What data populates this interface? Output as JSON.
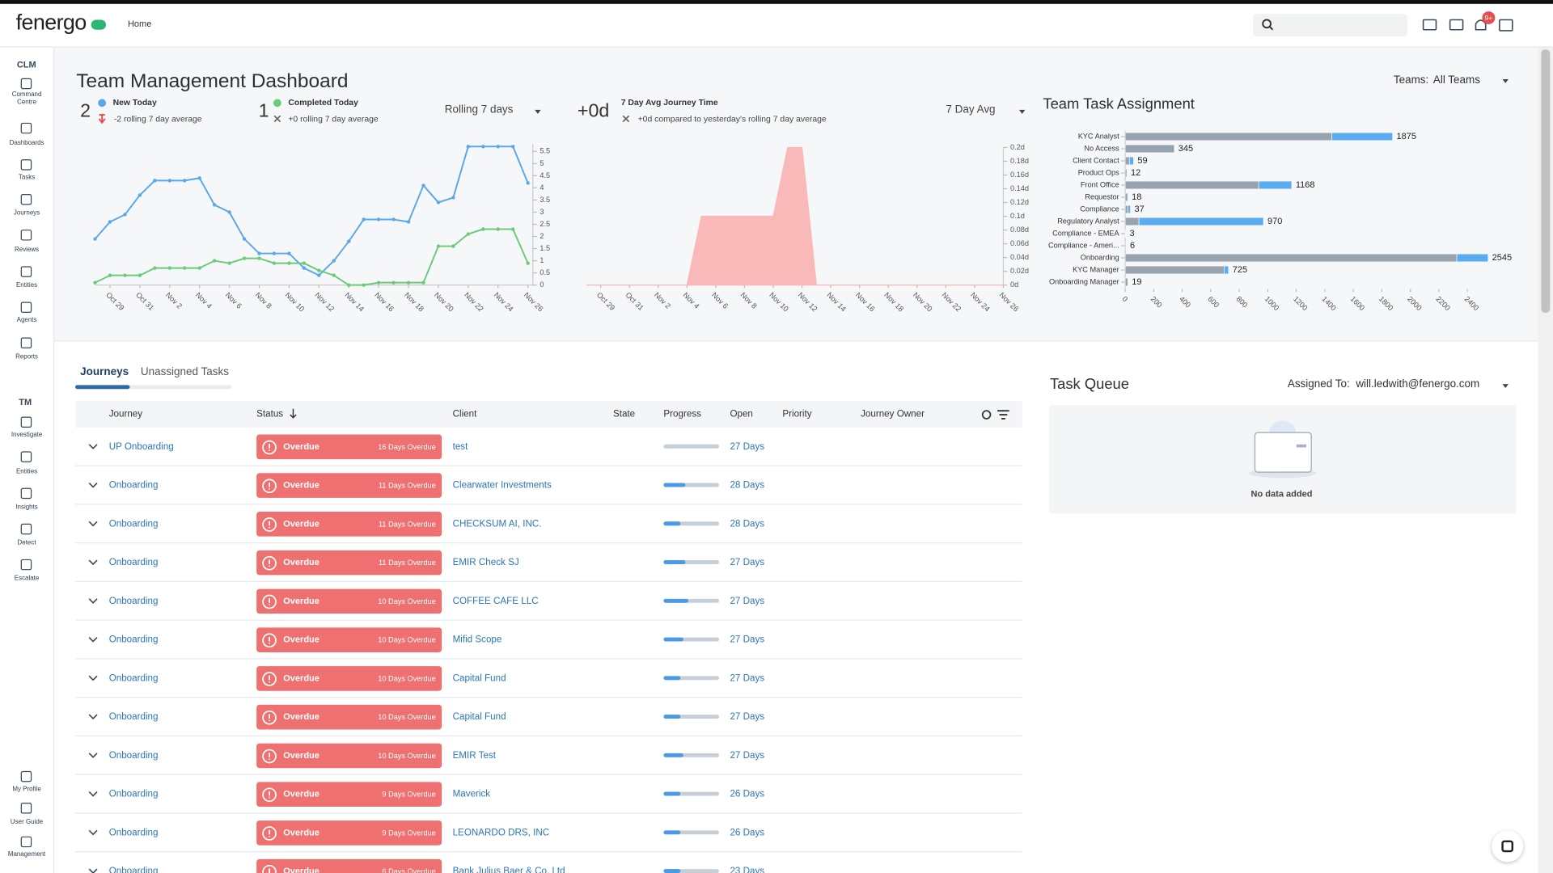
{
  "header": {
    "logo": "fenergo",
    "nav": "Home",
    "badge": "9+"
  },
  "sidebar": {
    "clm_title": "CLM",
    "clm": [
      "Command Centre",
      "Dashboards",
      "Tasks",
      "Journeys",
      "Reviews",
      "Entities",
      "Agents",
      "Reports"
    ],
    "tm_title": "TM",
    "tm": [
      "Investigate",
      "Entities",
      "Insights",
      "Detect",
      "Escalate"
    ],
    "bottom": [
      "My Profile",
      "User Guide",
      "Management"
    ]
  },
  "dashboard": {
    "title": "Team Management Dashboard",
    "teams_label": "Teams:",
    "teams_value": "All Teams",
    "new_today": {
      "value": 2,
      "change": "-2 rolling 7 day average"
    },
    "completed_today": {
      "value": 1,
      "change": "+0 rolling 7 day average"
    },
    "period": "Rolling 7 days",
    "journey_time": {
      "value": "+0d",
      "label": "7 Day Avg Journey Time",
      "change": "+0d compared to yesterday's rolling 7 day average",
      "period": "7 Day Avg"
    }
  },
  "chart_data": [
    {
      "type": "line",
      "categories": [
        null,
        "Oct 29",
        null,
        "Oct 31",
        null,
        "Nov 2",
        null,
        "Nov 4",
        null,
        "Nov 6",
        null,
        "Nov 8",
        null,
        "Nov 10",
        null,
        "Nov 12",
        null,
        "Nov 14",
        null,
        "Nov 16",
        null,
        "Nov 18",
        null,
        "Nov 20",
        null,
        "Nov 22",
        null,
        "Nov 24",
        null,
        "Nov 26"
      ],
      "series": [
        {
          "name": "New Today",
          "color": "#5aa8ea",
          "values": [
            1.9,
            2.6,
            2.9,
            3.7,
            4.3,
            4.3,
            4.3,
            4.4,
            3.3,
            3.0,
            1.9,
            1.3,
            1.3,
            1.3,
            0.7,
            0.4,
            1.0,
            1.8,
            2.7,
            2.7,
            2.7,
            2.6,
            4.1,
            3.4,
            3.6,
            5.7,
            5.7,
            5.7,
            5.7,
            4.2
          ]
        },
        {
          "name": "Completed Today",
          "color": "#6acb78",
          "values": [
            0.1,
            0.4,
            0.4,
            0.4,
            0.7,
            0.7,
            0.7,
            0.7,
            1.0,
            0.9,
            1.1,
            1.1,
            0.9,
            0.9,
            0.9,
            0.6,
            0.4,
            0,
            0,
            0.1,
            0.1,
            0.1,
            0.1,
            1.6,
            1.6,
            2.1,
            2.3,
            2.3,
            2.3,
            0.9
          ]
        }
      ],
      "ylim": [
        0,
        5.8
      ],
      "yticks": [
        0,
        0.5,
        1,
        1.5,
        2,
        2.5,
        3,
        3.5,
        4,
        4.5,
        5,
        5.5
      ]
    },
    {
      "type": "area",
      "categories": [
        null,
        "Oct 29",
        null,
        "Oct 31",
        null,
        "Nov 2",
        null,
        "Nov 4",
        null,
        "Nov 6",
        null,
        "Nov 8",
        null,
        "Nov 10",
        null,
        "Nov 12",
        null,
        "Nov 14",
        null,
        "Nov 16",
        null,
        "Nov 18",
        null,
        "Nov 20",
        null,
        "Nov 22",
        null,
        "Nov 24",
        null,
        "Nov 26"
      ],
      "series": [
        {
          "color": "#f9b9b9",
          "values": [
            0,
            0,
            0,
            0,
            0,
            0,
            0,
            0,
            0.1,
            0.1,
            0.1,
            0.1,
            0.1,
            0.1,
            0.2,
            0.2,
            0,
            0,
            0,
            0,
            0,
            0,
            0,
            0,
            0,
            0,
            0,
            0,
            0,
            0
          ]
        }
      ],
      "ylim": [
        0,
        0.2
      ],
      "yticks": [
        {
          "value": 0,
          "label": "0d"
        },
        {
          "value": 0.02,
          "label": "0.02d"
        },
        {
          "value": 0.04,
          "label": "0.04d"
        },
        {
          "value": 0.06,
          "label": "0.06d"
        },
        {
          "value": 0.08,
          "label": "0.08d"
        },
        {
          "value": 0.1,
          "label": "0.1d"
        },
        {
          "value": 0.12,
          "label": "0.12d"
        },
        {
          "value": 0.14,
          "label": "0.14d"
        },
        {
          "value": 0.16,
          "label": "0.16d"
        },
        {
          "value": 0.18,
          "label": "0.18d"
        },
        {
          "value": 0.2,
          "label": "0.2d"
        }
      ]
    },
    {
      "type": "hbar",
      "title": "Team Task Assignment",
      "categories": [
        "KYC Analyst",
        "No Access",
        "Client Contact",
        "Product Ops",
        "Front Office",
        "Requestor",
        "Compliance",
        "Regulatory Analyst",
        "Compliance - EMEA",
        "Compliance - Ameri...",
        "Onboarding",
        "KYC Manager",
        "Onboarding Manager"
      ],
      "series": [
        {
          "color": "#98a3b0",
          "values": [
            1450,
            345,
            30,
            12,
            937,
            18,
            20,
            97,
            3,
            6,
            2326,
            694,
            19
          ]
        },
        {
          "color": "#5aabf0",
          "values": [
            425,
            0,
            29,
            0,
            231,
            0,
            17,
            873,
            0,
            0,
            219,
            31,
            0
          ]
        }
      ],
      "totals": [
        1875,
        345,
        59,
        12,
        1168,
        18,
        37,
        970,
        3,
        6,
        2545,
        725,
        19
      ],
      "xlim": [
        0,
        2600
      ],
      "xticks": [
        0,
        200,
        400,
        600,
        800,
        1000,
        1200,
        1400,
        1600,
        1800,
        2000,
        2200,
        2400
      ]
    }
  ],
  "journeys": {
    "tabs": [
      "Journeys",
      "Unassigned Tasks"
    ],
    "columns": [
      "Journey",
      "Status",
      "Client",
      "State",
      "Progress",
      "Open",
      "Priority",
      "Journey Owner"
    ],
    "rows": [
      {
        "journey": "UP Onboarding",
        "status": "Overdue",
        "overdue": "16 Days Overdue",
        "client": "test",
        "progress": 0,
        "open": "27 Days"
      },
      {
        "journey": "Onboarding",
        "status": "Overdue",
        "overdue": "11 Days Overdue",
        "client": "Clearwater Investments",
        "progress": 40,
        "open": "28 Days"
      },
      {
        "journey": "Onboarding",
        "status": "Overdue",
        "overdue": "11 Days Overdue",
        "client": "CHECKSUM AI, INC.",
        "progress": 30,
        "open": "28 Days"
      },
      {
        "journey": "Onboarding",
        "status": "Overdue",
        "overdue": "11 Days Overdue",
        "client": "EMIR Check SJ",
        "progress": 40,
        "open": "27 Days"
      },
      {
        "journey": "Onboarding",
        "status": "Overdue",
        "overdue": "10 Days Overdue",
        "client": "COFFEE CAFE LLC",
        "progress": 45,
        "open": "27 Days"
      },
      {
        "journey": "Onboarding",
        "status": "Overdue",
        "overdue": "10 Days Overdue",
        "client": "Mifid Scope",
        "progress": 35,
        "open": "27 Days"
      },
      {
        "journey": "Onboarding",
        "status": "Overdue",
        "overdue": "10 Days Overdue",
        "client": "Capital Fund",
        "progress": 30,
        "open": "27 Days"
      },
      {
        "journey": "Onboarding",
        "status": "Overdue",
        "overdue": "10 Days Overdue",
        "client": "Capital Fund",
        "progress": 30,
        "open": "27 Days"
      },
      {
        "journey": "Onboarding",
        "status": "Overdue",
        "overdue": "10 Days Overdue",
        "client": "EMIR Test",
        "progress": 35,
        "open": "27 Days"
      },
      {
        "journey": "Onboarding",
        "status": "Overdue",
        "overdue": "9 Days Overdue",
        "client": "Maverick",
        "progress": 30,
        "open": "26 Days"
      },
      {
        "journey": "Onboarding",
        "status": "Overdue",
        "overdue": "9 Days Overdue",
        "client": "LEONARDO DRS, INC",
        "progress": 30,
        "open": "26 Days"
      },
      {
        "journey": "Onboarding",
        "status": "Overdue",
        "overdue": "6 Days Overdue",
        "client": "Bank Julius Baer & Co. Ltd",
        "progress": 30,
        "open": "23 Days"
      }
    ]
  },
  "task_queue": {
    "title": "Task Queue",
    "assigned_label": "Assigned To:",
    "assigned_value": "will.ledwith@fenergo.com",
    "empty": "No data added"
  }
}
